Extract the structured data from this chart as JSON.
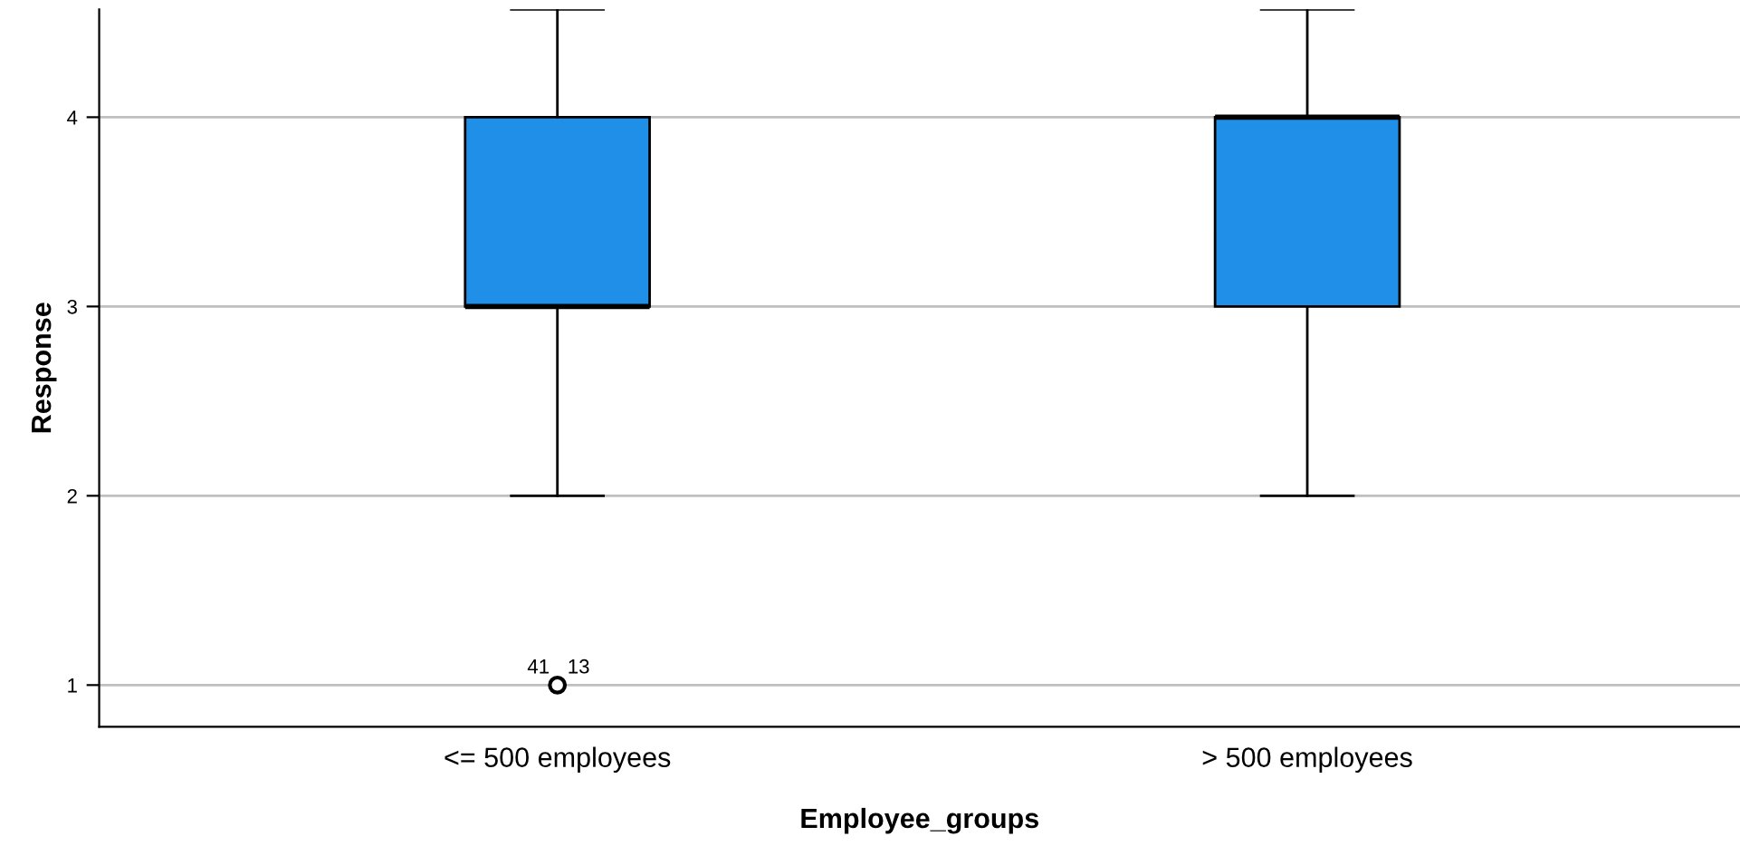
{
  "chart_data": {
    "type": "box",
    "xlabel": "Employee_groups",
    "ylabel": "Response",
    "categories": [
      "<= 500 employees",
      "> 500 employees"
    ],
    "series": [
      {
        "color": "#1f8fe8",
        "boxes": [
          {
            "low": 2,
            "q1": 3,
            "median": 3,
            "q3": 4,
            "high": 4.57,
            "outliers": [
              1
            ]
          },
          {
            "low": 2,
            "q1": 3,
            "median": 4,
            "q3": 4,
            "high": 4.57
          }
        ]
      }
    ],
    "ylim": [
      0.78,
      4.57
    ],
    "yticks": [
      1,
      2,
      3,
      4
    ],
    "grid": "y",
    "annotations": [
      "41",
      "13"
    ]
  }
}
